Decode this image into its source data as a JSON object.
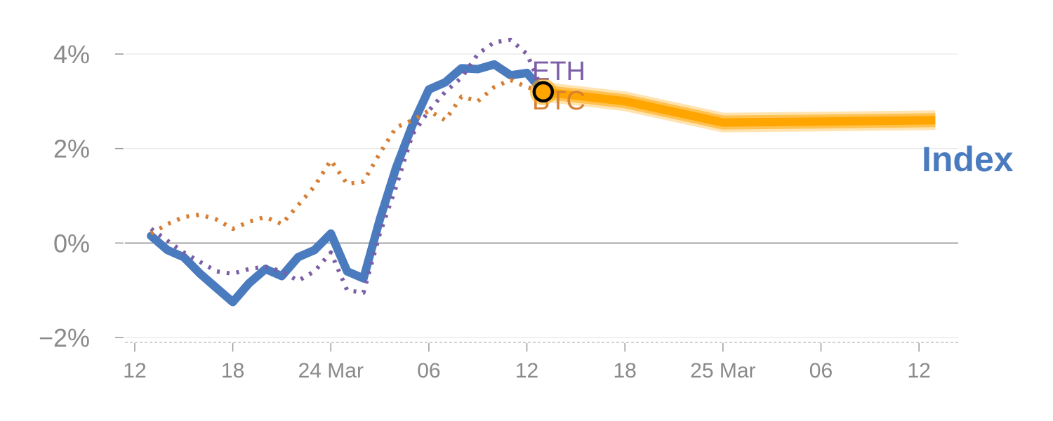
{
  "chart_data": {
    "type": "line",
    "colors": {
      "index": "#4a7bbf",
      "eth": "#7b5ea6",
      "btc": "#d67f34",
      "forecast": "#ffa500",
      "grid": "#e6e6e6",
      "zero": "#888888",
      "tick_text": "#8a8a8a"
    },
    "y_ticks": [
      {
        "value": 4,
        "label": "4%"
      },
      {
        "value": 2,
        "label": "2%"
      },
      {
        "value": 0,
        "label": "0%"
      },
      {
        "value": -2,
        "label": "−2%"
      }
    ],
    "ylim": [
      -2,
      4
    ],
    "x_ticks": [
      {
        "value": 0,
        "label": "12"
      },
      {
        "value": 6,
        "label": "18"
      },
      {
        "value": 12,
        "label": "24 Mar"
      },
      {
        "value": 18,
        "label": "06"
      },
      {
        "value": 24,
        "label": "12"
      },
      {
        "value": 30,
        "label": "18"
      },
      {
        "value": 36,
        "label": "25 Mar"
      },
      {
        "value": 42,
        "label": "06"
      },
      {
        "value": 48,
        "label": "12"
      }
    ],
    "xlim": [
      -0.6,
      50.4
    ],
    "grid": true,
    "series": [
      {
        "name": "Index",
        "style": "solid",
        "x": [
          1,
          2,
          3,
          4,
          5,
          6,
          7,
          8,
          9,
          10,
          11,
          12,
          13,
          14,
          15,
          16,
          17,
          18,
          19,
          20,
          21,
          22,
          23,
          24,
          25
        ],
        "values": [
          0.15,
          -0.15,
          -0.3,
          -0.65,
          -0.95,
          -1.25,
          -0.85,
          -0.55,
          -0.7,
          -0.3,
          -0.15,
          0.2,
          -0.6,
          -0.75,
          0.5,
          1.6,
          2.5,
          3.25,
          3.4,
          3.7,
          3.68,
          3.78,
          3.55,
          3.6,
          3.2
        ]
      },
      {
        "name": "ETH",
        "style": "dotted",
        "x": [
          1,
          2,
          3,
          4,
          5,
          6,
          7,
          8,
          9,
          10,
          11,
          12,
          13,
          14,
          15,
          16,
          17,
          18,
          19,
          20,
          21,
          22,
          23,
          24,
          25
        ],
        "values": [
          0.3,
          0.05,
          -0.2,
          -0.4,
          -0.6,
          -0.65,
          -0.55,
          -0.5,
          -0.6,
          -0.8,
          -0.6,
          -0.2,
          -1.0,
          -1.05,
          0.2,
          1.2,
          2.3,
          2.8,
          3.2,
          3.5,
          4.0,
          4.25,
          4.3,
          4.0,
          3.2
        ]
      },
      {
        "name": "BTC",
        "style": "dotted",
        "x": [
          1,
          2,
          3,
          4,
          5,
          6,
          7,
          8,
          9,
          10,
          11,
          12,
          13,
          14,
          15,
          16,
          17,
          18,
          19,
          20,
          21,
          22,
          23,
          24,
          25
        ],
        "values": [
          0.2,
          0.4,
          0.55,
          0.6,
          0.5,
          0.3,
          0.45,
          0.55,
          0.4,
          0.8,
          1.2,
          1.75,
          1.25,
          1.3,
          1.9,
          2.45,
          2.6,
          2.8,
          2.6,
          3.1,
          3.0,
          3.3,
          3.45,
          3.3,
          3.2
        ]
      },
      {
        "name": "Index forecast",
        "style": "band",
        "x": [
          25,
          30,
          36,
          42,
          49
        ],
        "values": [
          3.2,
          3.0,
          2.55,
          2.57,
          2.6
        ]
      }
    ],
    "labels": {
      "eth": "ETH",
      "btc": "BTC",
      "index": "Index"
    },
    "highlight_point": {
      "x": 25,
      "y": 3.2
    }
  }
}
